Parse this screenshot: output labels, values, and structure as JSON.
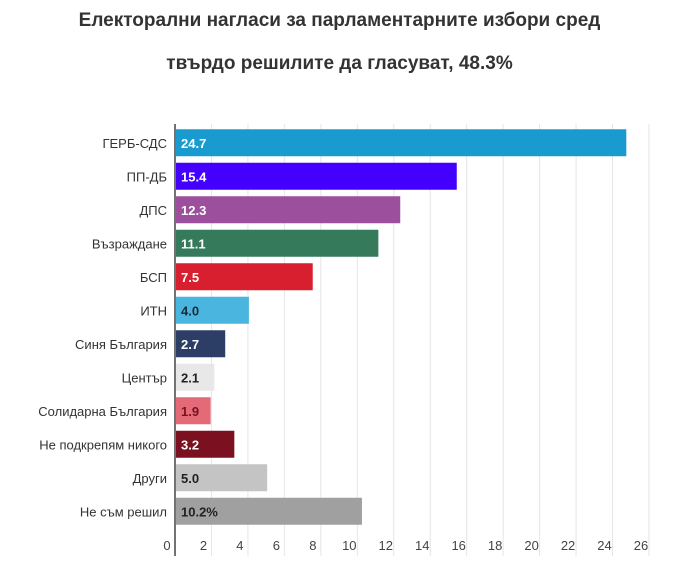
{
  "chart_data": {
    "type": "bar",
    "orientation": "horizontal",
    "title": "Електорални нагласи за парламентарните избори сред",
    "subtitle": "твърдо решилите да гласуват, 48.3%",
    "categories": [
      "ГЕРБ-СДС",
      "ПП-ДБ",
      "ДПС",
      "Възраждане",
      "БСП",
      "ИТН",
      "Синя България",
      "Център",
      "Солидарна България",
      "Не подкрепям никого",
      "Други",
      "Не съм решил"
    ],
    "values": [
      24.7,
      15.4,
      12.3,
      11.1,
      7.5,
      4.0,
      2.7,
      2.1,
      1.9,
      3.2,
      5.0,
      10.2
    ],
    "data_labels": [
      "24.7",
      "15.4",
      "12.3",
      "11.1",
      "7.5",
      "4.0",
      "2.7",
      "2.1",
      "1.9",
      "3.2",
      "5.0",
      "10.2%"
    ],
    "colors": [
      "#1a9bd0",
      "#4400ff",
      "#9b4f9c",
      "#357a5a",
      "#d81f2f",
      "#4ab6e0",
      "#2c3e66",
      "#e8e8e8",
      "#e46a78",
      "#7a1020",
      "#c4c4c4",
      "#a0a0a0"
    ],
    "label_colors": [
      "#ffffff",
      "#ffffff",
      "#ffffff",
      "#ffffff",
      "#ffffff",
      "#1a2a3a",
      "#ffffff",
      "#222222",
      "#7a1020",
      "#ffffff",
      "#222222",
      "#222222"
    ],
    "xlim": [
      0,
      26
    ],
    "xticks": [
      0,
      2,
      4,
      6,
      8,
      10,
      12,
      14,
      16,
      18,
      20,
      22,
      24,
      26
    ],
    "grid": true
  }
}
